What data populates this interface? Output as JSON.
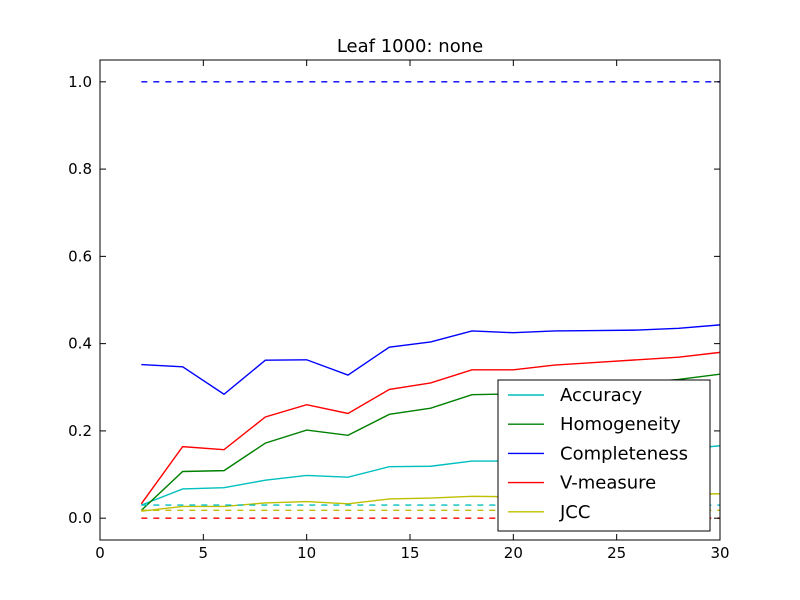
{
  "chart_data": {
    "type": "line",
    "title": "Leaf 1000: none",
    "xlabel": "",
    "ylabel": "",
    "xlim": [
      0,
      30
    ],
    "ylim": [
      -0.05,
      1.05
    ],
    "x_ticks": [
      0,
      5,
      10,
      15,
      20,
      25,
      30
    ],
    "x_tick_labels": [
      "0",
      "5",
      "10",
      "15",
      "20",
      "25",
      "30"
    ],
    "y_ticks": [
      0.0,
      0.2,
      0.4,
      0.6,
      0.8,
      1.0
    ],
    "y_tick_labels": [
      "0.0",
      "0.2",
      "0.4",
      "0.6",
      "0.8",
      "1.0"
    ],
    "grid": false,
    "legend_position": "lower-right",
    "x": [
      2,
      4,
      6,
      8,
      10,
      12,
      14,
      16,
      18,
      20,
      22,
      24,
      26,
      28,
      30
    ],
    "series": [
      {
        "name": "Accuracy",
        "color": "#00bfbf",
        "style": "solid",
        "in_legend": true,
        "values": [
          0.03,
          0.067,
          0.07,
          0.087,
          0.098,
          0.094,
          0.118,
          0.119,
          0.131,
          0.131,
          0.137,
          0.143,
          0.148,
          0.157,
          0.166
        ]
      },
      {
        "name": "Homogeneity",
        "color": "#008000",
        "style": "solid",
        "in_legend": true,
        "values": [
          0.018,
          0.107,
          0.109,
          0.172,
          0.202,
          0.19,
          0.238,
          0.252,
          0.283,
          0.285,
          0.295,
          0.302,
          0.31,
          0.318,
          0.33
        ]
      },
      {
        "name": "Completeness",
        "color": "#0000ff",
        "style": "solid",
        "in_legend": true,
        "values": [
          0.352,
          0.347,
          0.284,
          0.362,
          0.363,
          0.328,
          0.392,
          0.404,
          0.429,
          0.425,
          0.429,
          0.43,
          0.431,
          0.435,
          0.443
        ]
      },
      {
        "name": "V-measure",
        "color": "#ff0000",
        "style": "solid",
        "in_legend": true,
        "values": [
          0.033,
          0.164,
          0.157,
          0.232,
          0.26,
          0.24,
          0.295,
          0.31,
          0.34,
          0.34,
          0.351,
          0.357,
          0.363,
          0.369,
          0.38
        ]
      },
      {
        "name": "JCC",
        "color": "#bfbf00",
        "style": "solid",
        "in_legend": true,
        "values": [
          0.016,
          0.027,
          0.027,
          0.035,
          0.038,
          0.033,
          0.044,
          0.046,
          0.05,
          0.049,
          0.051,
          0.052,
          0.053,
          0.054,
          0.056
        ]
      },
      {
        "name": "",
        "color": "#0000ff",
        "style": "dashed",
        "in_legend": false,
        "values": [
          1.0,
          1.0,
          1.0,
          1.0,
          1.0,
          1.0,
          1.0,
          1.0,
          1.0,
          1.0,
          1.0,
          1.0,
          1.0,
          1.0,
          1.0
        ]
      },
      {
        "name": "",
        "color": "#00bfbf",
        "style": "dashed",
        "in_legend": false,
        "values": [
          0.03,
          0.03,
          0.03,
          0.03,
          0.03,
          0.03,
          0.03,
          0.03,
          0.03,
          0.03,
          0.03,
          0.03,
          0.03,
          0.03,
          0.03
        ]
      },
      {
        "name": "",
        "color": "#bfbf00",
        "style": "dashed",
        "in_legend": false,
        "values": [
          0.018,
          0.018,
          0.018,
          0.018,
          0.018,
          0.018,
          0.018,
          0.018,
          0.018,
          0.018,
          0.018,
          0.018,
          0.018,
          0.018,
          0.018
        ]
      },
      {
        "name": "",
        "color": "#ff0000",
        "style": "dashed",
        "in_legend": false,
        "values": [
          0.0,
          0.0,
          0.0,
          0.0,
          0.0,
          0.0,
          0.0,
          0.0,
          0.0,
          0.0,
          0.0,
          0.0,
          0.0,
          0.0,
          0.0
        ]
      }
    ]
  }
}
